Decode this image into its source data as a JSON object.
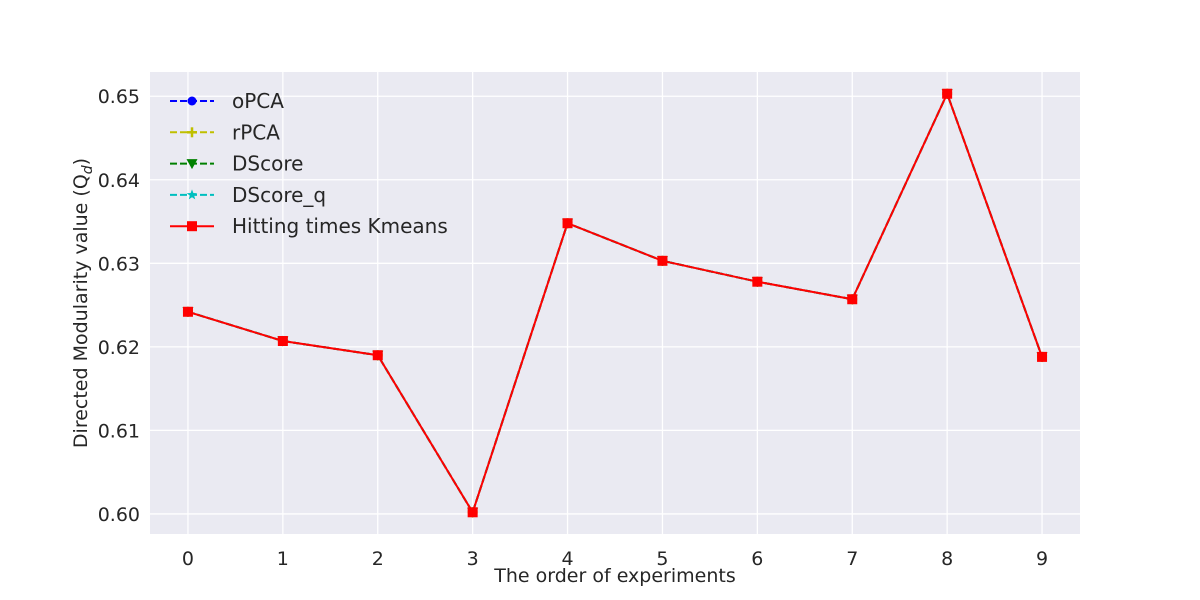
{
  "chart_data": {
    "type": "line",
    "title": "",
    "xlabel": "The order of experiments",
    "ylabel": "Directed Modularity value (Q",
    "ylabel_subscript": "d",
    "ylabel_suffix": ")",
    "x": [
      0,
      1,
      2,
      3,
      4,
      5,
      6,
      7,
      8,
      9
    ],
    "xlim": [
      -0.4,
      9.4
    ],
    "ylim": [
      0.5976,
      0.6529
    ],
    "xticks": [
      0,
      1,
      2,
      3,
      4,
      5,
      6,
      7,
      8,
      9
    ],
    "yticks": [
      0.6,
      0.61,
      0.62,
      0.63,
      0.64,
      0.65
    ],
    "grid": true,
    "legend_position": "upper-left",
    "series": [
      {
        "name": "oPCA",
        "color": "#0000ff",
        "linestyle": "dashed",
        "marker": "circle",
        "values": [
          0.6242,
          0.6207,
          0.619,
          0.6002,
          0.6348,
          0.6303,
          0.6278,
          0.6257,
          0.6503,
          0.6188
        ]
      },
      {
        "name": "rPCA",
        "color": "#bfbf00",
        "linestyle": "dashed",
        "marker": "plus",
        "values": [
          0.6242,
          0.6207,
          0.619,
          0.6002,
          0.6348,
          0.6303,
          0.6278,
          0.6257,
          0.6503,
          0.6188
        ]
      },
      {
        "name": "DScore",
        "color": "#008000",
        "linestyle": "dashed",
        "marker": "triangle-down",
        "values": [
          0.6242,
          0.6207,
          0.619,
          0.6002,
          0.6348,
          0.6303,
          0.6278,
          0.6257,
          0.6503,
          0.6188
        ]
      },
      {
        "name": "DScore_q",
        "color": "#00bfbf",
        "linestyle": "dashed",
        "marker": "star",
        "values": [
          0.6242,
          0.6207,
          0.619,
          0.6002,
          0.6348,
          0.6303,
          0.6278,
          0.6257,
          0.6503,
          0.6188
        ]
      },
      {
        "name": "Hitting times Kmeans",
        "color": "#ff0000",
        "linestyle": "solid",
        "marker": "square",
        "values": [
          0.6242,
          0.6207,
          0.619,
          0.6002,
          0.6348,
          0.6303,
          0.6278,
          0.6257,
          0.6503,
          0.6188
        ]
      }
    ]
  }
}
